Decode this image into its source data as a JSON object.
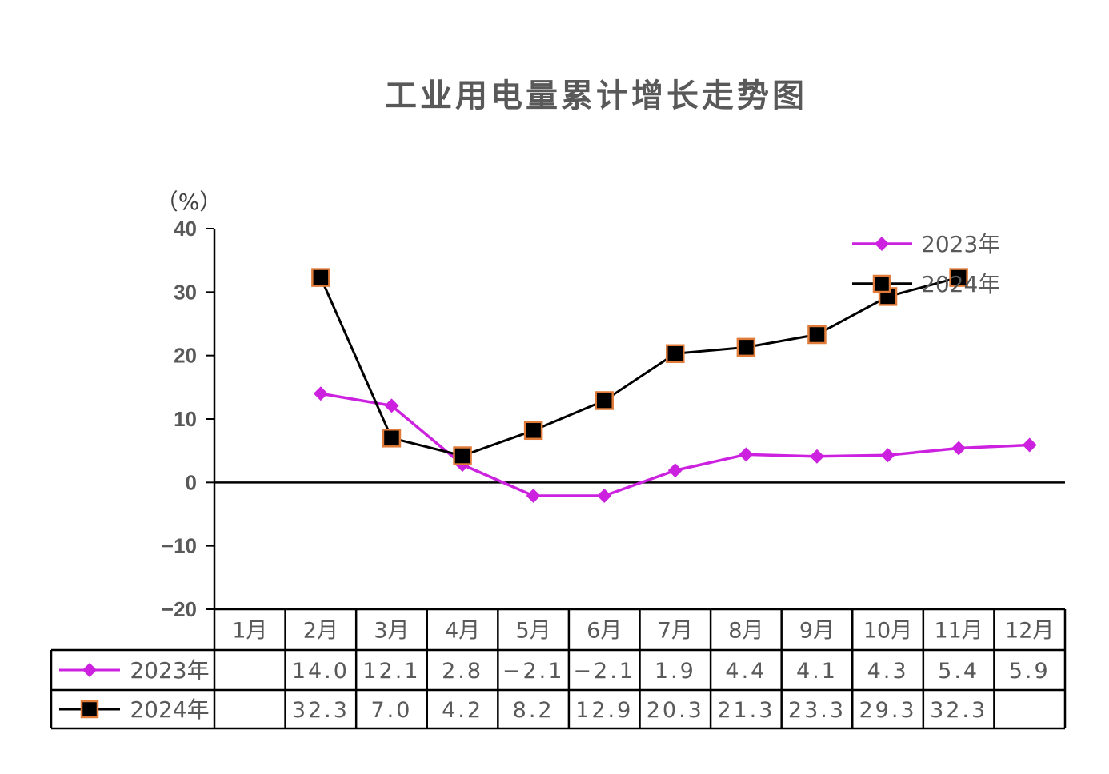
{
  "chart_data": {
    "type": "line",
    "title": "工业用电量累计增长走势图",
    "ylabel": "（%）",
    "ylim": [
      -20,
      40
    ],
    "yticks": [
      "40",
      "30",
      "20",
      "10",
      "0",
      "−10",
      "−20"
    ],
    "categories": [
      "1月",
      "2月",
      "3月",
      "4月",
      "5月",
      "6月",
      "7月",
      "8月",
      "9月",
      "10月",
      "11月",
      "12月"
    ],
    "series": [
      {
        "name": "2023年",
        "color": "#cc22e0",
        "marker": "diamond",
        "values": [
          null,
          14.0,
          12.1,
          2.8,
          -2.1,
          -2.1,
          1.9,
          4.4,
          4.1,
          4.3,
          5.4,
          5.9
        ],
        "labels": [
          "",
          "14.0",
          "12.1",
          "2.8",
          "−2.1",
          "−2.1",
          "1.9",
          "4.4",
          "4.1",
          "4.3",
          "5.4",
          "5.9"
        ]
      },
      {
        "name": "2024年",
        "color": "#000000",
        "marker": "square",
        "marker_edge": "#e07b39",
        "values": [
          null,
          32.3,
          7.0,
          4.2,
          8.2,
          12.9,
          20.3,
          21.3,
          23.3,
          29.3,
          32.3,
          null
        ],
        "labels": [
          "",
          "32.3",
          "7.0",
          "4.2",
          "8.2",
          "12.9",
          "20.3",
          "21.3",
          "23.3",
          "29.3",
          "32.3",
          ""
        ]
      }
    ],
    "legend": "top-right",
    "data_table": true
  }
}
